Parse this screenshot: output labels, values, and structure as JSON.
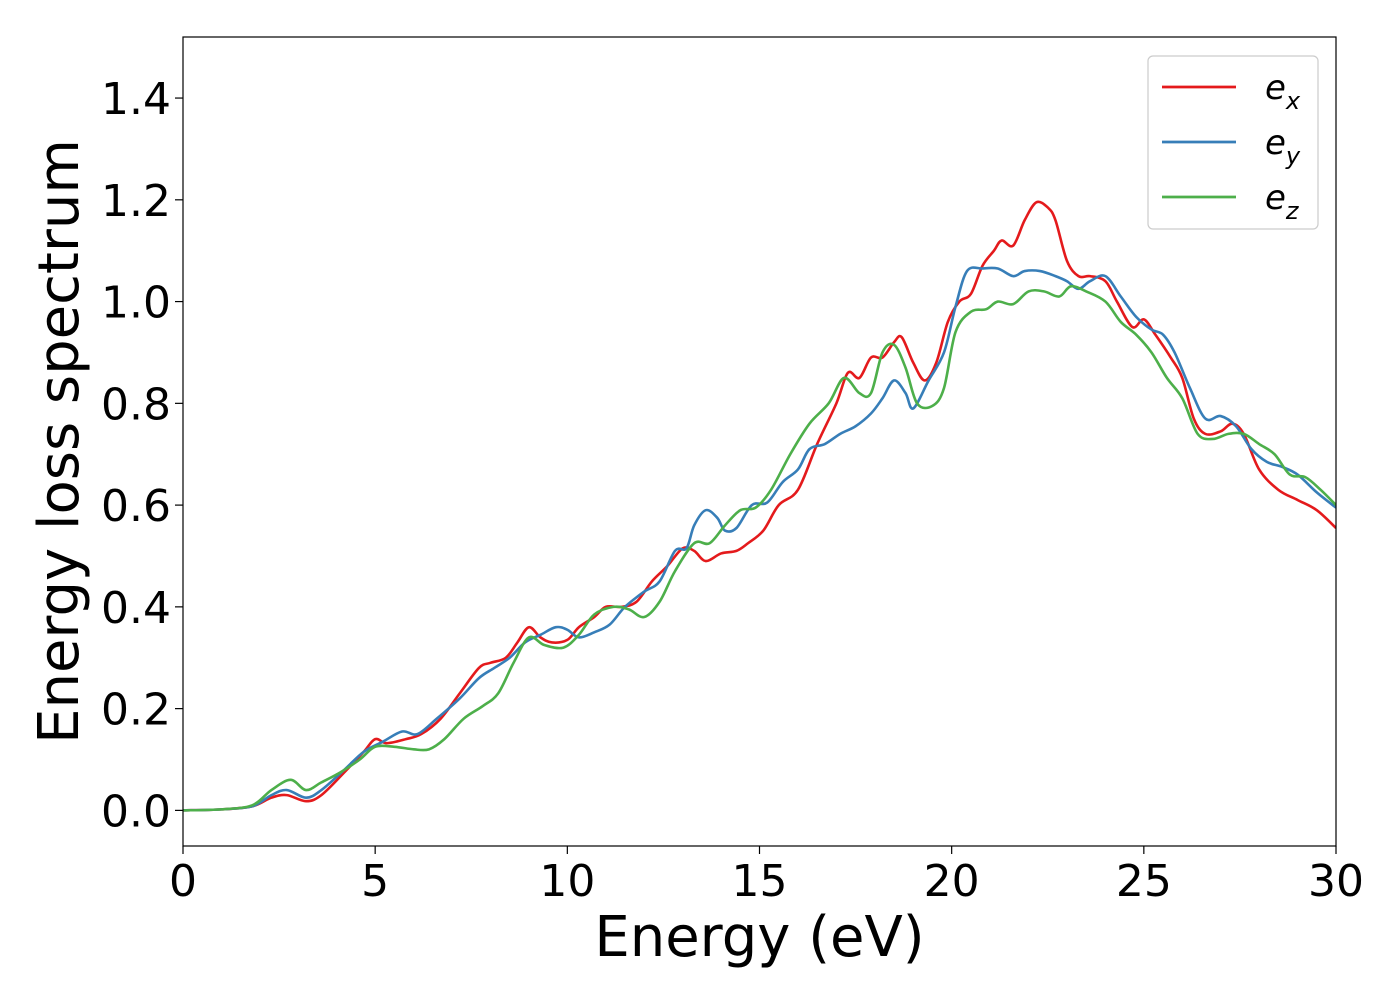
{
  "chart_data": {
    "type": "line",
    "title": "",
    "xlabel": "Energy (eV)",
    "ylabel": "Energy loss spectrum",
    "xlim": [
      0,
      30
    ],
    "ylim": [
      -0.07,
      1.52
    ],
    "xticks": [
      0,
      5,
      10,
      15,
      20,
      25,
      30
    ],
    "xtick_labels": [
      "0",
      "5",
      "10",
      "15",
      "20",
      "25",
      "30"
    ],
    "yticks": [
      0.0,
      0.2,
      0.4,
      0.6,
      0.8,
      1.0,
      1.2,
      1.4
    ],
    "ytick_labels": [
      "0.0",
      "0.2",
      "0.4",
      "0.6",
      "0.8",
      "1.0",
      "1.2",
      "1.4"
    ],
    "grid": false,
    "legend_position": "top-right",
    "series": [
      {
        "name": "e_x",
        "legend_base": "e",
        "legend_sub": "x",
        "color": "#e41a1c",
        "points": [
          [
            0,
            0
          ],
          [
            1,
            0.002
          ],
          [
            1.8,
            0.008
          ],
          [
            2.3,
            0.025
          ],
          [
            2.7,
            0.03
          ],
          [
            3.2,
            0.018
          ],
          [
            3.6,
            0.03
          ],
          [
            4.2,
            0.075
          ],
          [
            4.7,
            0.115
          ],
          [
            5.0,
            0.14
          ],
          [
            5.3,
            0.132
          ],
          [
            5.8,
            0.14
          ],
          [
            6.2,
            0.15
          ],
          [
            6.7,
            0.18
          ],
          [
            7.2,
            0.23
          ],
          [
            7.7,
            0.28
          ],
          [
            8.0,
            0.29
          ],
          [
            8.4,
            0.3
          ],
          [
            8.7,
            0.33
          ],
          [
            9.0,
            0.36
          ],
          [
            9.3,
            0.34
          ],
          [
            9.6,
            0.33
          ],
          [
            10.0,
            0.335
          ],
          [
            10.3,
            0.36
          ],
          [
            10.7,
            0.38
          ],
          [
            11.0,
            0.4
          ],
          [
            11.4,
            0.4
          ],
          [
            11.8,
            0.41
          ],
          [
            12.2,
            0.45
          ],
          [
            12.6,
            0.48
          ],
          [
            13.0,
            0.515
          ],
          [
            13.3,
            0.51
          ],
          [
            13.6,
            0.49
          ],
          [
            14.0,
            0.505
          ],
          [
            14.4,
            0.51
          ],
          [
            14.7,
            0.525
          ],
          [
            15.1,
            0.55
          ],
          [
            15.5,
            0.6
          ],
          [
            16.0,
            0.63
          ],
          [
            16.5,
            0.72
          ],
          [
            17.0,
            0.8
          ],
          [
            17.3,
            0.86
          ],
          [
            17.6,
            0.85
          ],
          [
            17.9,
            0.89
          ],
          [
            18.2,
            0.89
          ],
          [
            18.5,
            0.92
          ],
          [
            18.7,
            0.93
          ],
          [
            19.0,
            0.88
          ],
          [
            19.3,
            0.845
          ],
          [
            19.6,
            0.88
          ],
          [
            19.9,
            0.96
          ],
          [
            20.2,
            1.0
          ],
          [
            20.5,
            1.015
          ],
          [
            20.8,
            1.07
          ],
          [
            21.1,
            1.1
          ],
          [
            21.3,
            1.12
          ],
          [
            21.6,
            1.11
          ],
          [
            21.9,
            1.16
          ],
          [
            22.2,
            1.195
          ],
          [
            22.5,
            1.185
          ],
          [
            22.7,
            1.16
          ],
          [
            23.0,
            1.08
          ],
          [
            23.3,
            1.05
          ],
          [
            23.6,
            1.05
          ],
          [
            24.0,
            1.04
          ],
          [
            24.3,
            1.0
          ],
          [
            24.7,
            0.95
          ],
          [
            25.0,
            0.965
          ],
          [
            25.3,
            0.935
          ],
          [
            25.7,
            0.89
          ],
          [
            26.0,
            0.85
          ],
          [
            26.3,
            0.77
          ],
          [
            26.6,
            0.74
          ],
          [
            27.0,
            0.745
          ],
          [
            27.3,
            0.76
          ],
          [
            27.6,
            0.74
          ],
          [
            28.0,
            0.67
          ],
          [
            28.5,
            0.63
          ],
          [
            29.0,
            0.61
          ],
          [
            29.5,
            0.59
          ],
          [
            30.0,
            0.555
          ]
        ]
      },
      {
        "name": "e_y",
        "legend_base": "e",
        "legend_sub": "y",
        "color": "#377eb8",
        "points": [
          [
            0,
            0
          ],
          [
            1,
            0.002
          ],
          [
            1.8,
            0.008
          ],
          [
            2.3,
            0.03
          ],
          [
            2.7,
            0.04
          ],
          [
            3.2,
            0.025
          ],
          [
            3.6,
            0.04
          ],
          [
            4.2,
            0.08
          ],
          [
            4.7,
            0.115
          ],
          [
            5.2,
            0.135
          ],
          [
            5.7,
            0.155
          ],
          [
            6.1,
            0.15
          ],
          [
            6.6,
            0.18
          ],
          [
            7.2,
            0.22
          ],
          [
            7.7,
            0.26
          ],
          [
            8.1,
            0.28
          ],
          [
            8.5,
            0.3
          ],
          [
            8.9,
            0.33
          ],
          [
            9.3,
            0.345
          ],
          [
            9.7,
            0.36
          ],
          [
            10.0,
            0.355
          ],
          [
            10.3,
            0.34
          ],
          [
            10.7,
            0.35
          ],
          [
            11.1,
            0.365
          ],
          [
            11.5,
            0.4
          ],
          [
            12.0,
            0.43
          ],
          [
            12.4,
            0.45
          ],
          [
            12.8,
            0.51
          ],
          [
            13.1,
            0.515
          ],
          [
            13.3,
            0.56
          ],
          [
            13.6,
            0.59
          ],
          [
            13.9,
            0.575
          ],
          [
            14.1,
            0.55
          ],
          [
            14.4,
            0.555
          ],
          [
            14.8,
            0.6
          ],
          [
            15.2,
            0.605
          ],
          [
            15.6,
            0.645
          ],
          [
            16.0,
            0.67
          ],
          [
            16.3,
            0.71
          ],
          [
            16.7,
            0.72
          ],
          [
            17.1,
            0.74
          ],
          [
            17.5,
            0.755
          ],
          [
            17.9,
            0.78
          ],
          [
            18.2,
            0.81
          ],
          [
            18.5,
            0.845
          ],
          [
            18.8,
            0.82
          ],
          [
            19.0,
            0.79
          ],
          [
            19.4,
            0.845
          ],
          [
            19.8,
            0.9
          ],
          [
            20.1,
            0.99
          ],
          [
            20.4,
            1.06
          ],
          [
            20.8,
            1.065
          ],
          [
            21.2,
            1.065
          ],
          [
            21.6,
            1.05
          ],
          [
            21.9,
            1.06
          ],
          [
            22.3,
            1.06
          ],
          [
            22.7,
            1.05
          ],
          [
            23.0,
            1.04
          ],
          [
            23.3,
            1.025
          ],
          [
            23.6,
            1.04
          ],
          [
            24.0,
            1.05
          ],
          [
            24.4,
            1.01
          ],
          [
            24.8,
            0.97
          ],
          [
            25.2,
            0.945
          ],
          [
            25.5,
            0.935
          ],
          [
            25.8,
            0.9
          ],
          [
            26.2,
            0.83
          ],
          [
            26.6,
            0.77
          ],
          [
            27.0,
            0.775
          ],
          [
            27.4,
            0.755
          ],
          [
            27.8,
            0.71
          ],
          [
            28.2,
            0.685
          ],
          [
            28.6,
            0.675
          ],
          [
            29.0,
            0.66
          ],
          [
            29.5,
            0.625
          ],
          [
            30.0,
            0.595
          ]
        ]
      },
      {
        "name": "e_z",
        "legend_base": "e",
        "legend_sub": "z",
        "color": "#4daf4a",
        "points": [
          [
            0,
            0
          ],
          [
            1,
            0.002
          ],
          [
            1.8,
            0.01
          ],
          [
            2.3,
            0.04
          ],
          [
            2.8,
            0.06
          ],
          [
            3.2,
            0.04
          ],
          [
            3.6,
            0.055
          ],
          [
            4.1,
            0.075
          ],
          [
            4.6,
            0.1
          ],
          [
            5.0,
            0.125
          ],
          [
            5.5,
            0.125
          ],
          [
            6.0,
            0.12
          ],
          [
            6.4,
            0.12
          ],
          [
            6.8,
            0.14
          ],
          [
            7.3,
            0.18
          ],
          [
            7.8,
            0.205
          ],
          [
            8.2,
            0.23
          ],
          [
            8.6,
            0.29
          ],
          [
            9.0,
            0.34
          ],
          [
            9.4,
            0.325
          ],
          [
            9.9,
            0.32
          ],
          [
            10.3,
            0.345
          ],
          [
            10.7,
            0.385
          ],
          [
            11.2,
            0.4
          ],
          [
            11.6,
            0.395
          ],
          [
            12.0,
            0.38
          ],
          [
            12.4,
            0.41
          ],
          [
            12.8,
            0.47
          ],
          [
            13.3,
            0.525
          ],
          [
            13.7,
            0.525
          ],
          [
            14.1,
            0.56
          ],
          [
            14.5,
            0.59
          ],
          [
            14.9,
            0.595
          ],
          [
            15.3,
            0.63
          ],
          [
            15.8,
            0.7
          ],
          [
            16.3,
            0.76
          ],
          [
            16.8,
            0.8
          ],
          [
            17.2,
            0.85
          ],
          [
            17.6,
            0.82
          ],
          [
            17.9,
            0.82
          ],
          [
            18.2,
            0.9
          ],
          [
            18.5,
            0.915
          ],
          [
            18.8,
            0.87
          ],
          [
            19.1,
            0.8
          ],
          [
            19.5,
            0.795
          ],
          [
            19.8,
            0.83
          ],
          [
            20.1,
            0.94
          ],
          [
            20.5,
            0.98
          ],
          [
            20.9,
            0.985
          ],
          [
            21.2,
            1.0
          ],
          [
            21.6,
            0.995
          ],
          [
            22.0,
            1.02
          ],
          [
            22.4,
            1.02
          ],
          [
            22.8,
            1.01
          ],
          [
            23.1,
            1.03
          ],
          [
            23.5,
            1.02
          ],
          [
            24.0,
            1.0
          ],
          [
            24.4,
            0.96
          ],
          [
            24.8,
            0.935
          ],
          [
            25.2,
            0.9
          ],
          [
            25.6,
            0.85
          ],
          [
            26.0,
            0.81
          ],
          [
            26.4,
            0.74
          ],
          [
            26.8,
            0.73
          ],
          [
            27.2,
            0.74
          ],
          [
            27.6,
            0.74
          ],
          [
            28.0,
            0.72
          ],
          [
            28.4,
            0.7
          ],
          [
            28.8,
            0.66
          ],
          [
            29.2,
            0.655
          ],
          [
            29.6,
            0.63
          ],
          [
            30.0,
            0.6
          ]
        ]
      }
    ]
  }
}
